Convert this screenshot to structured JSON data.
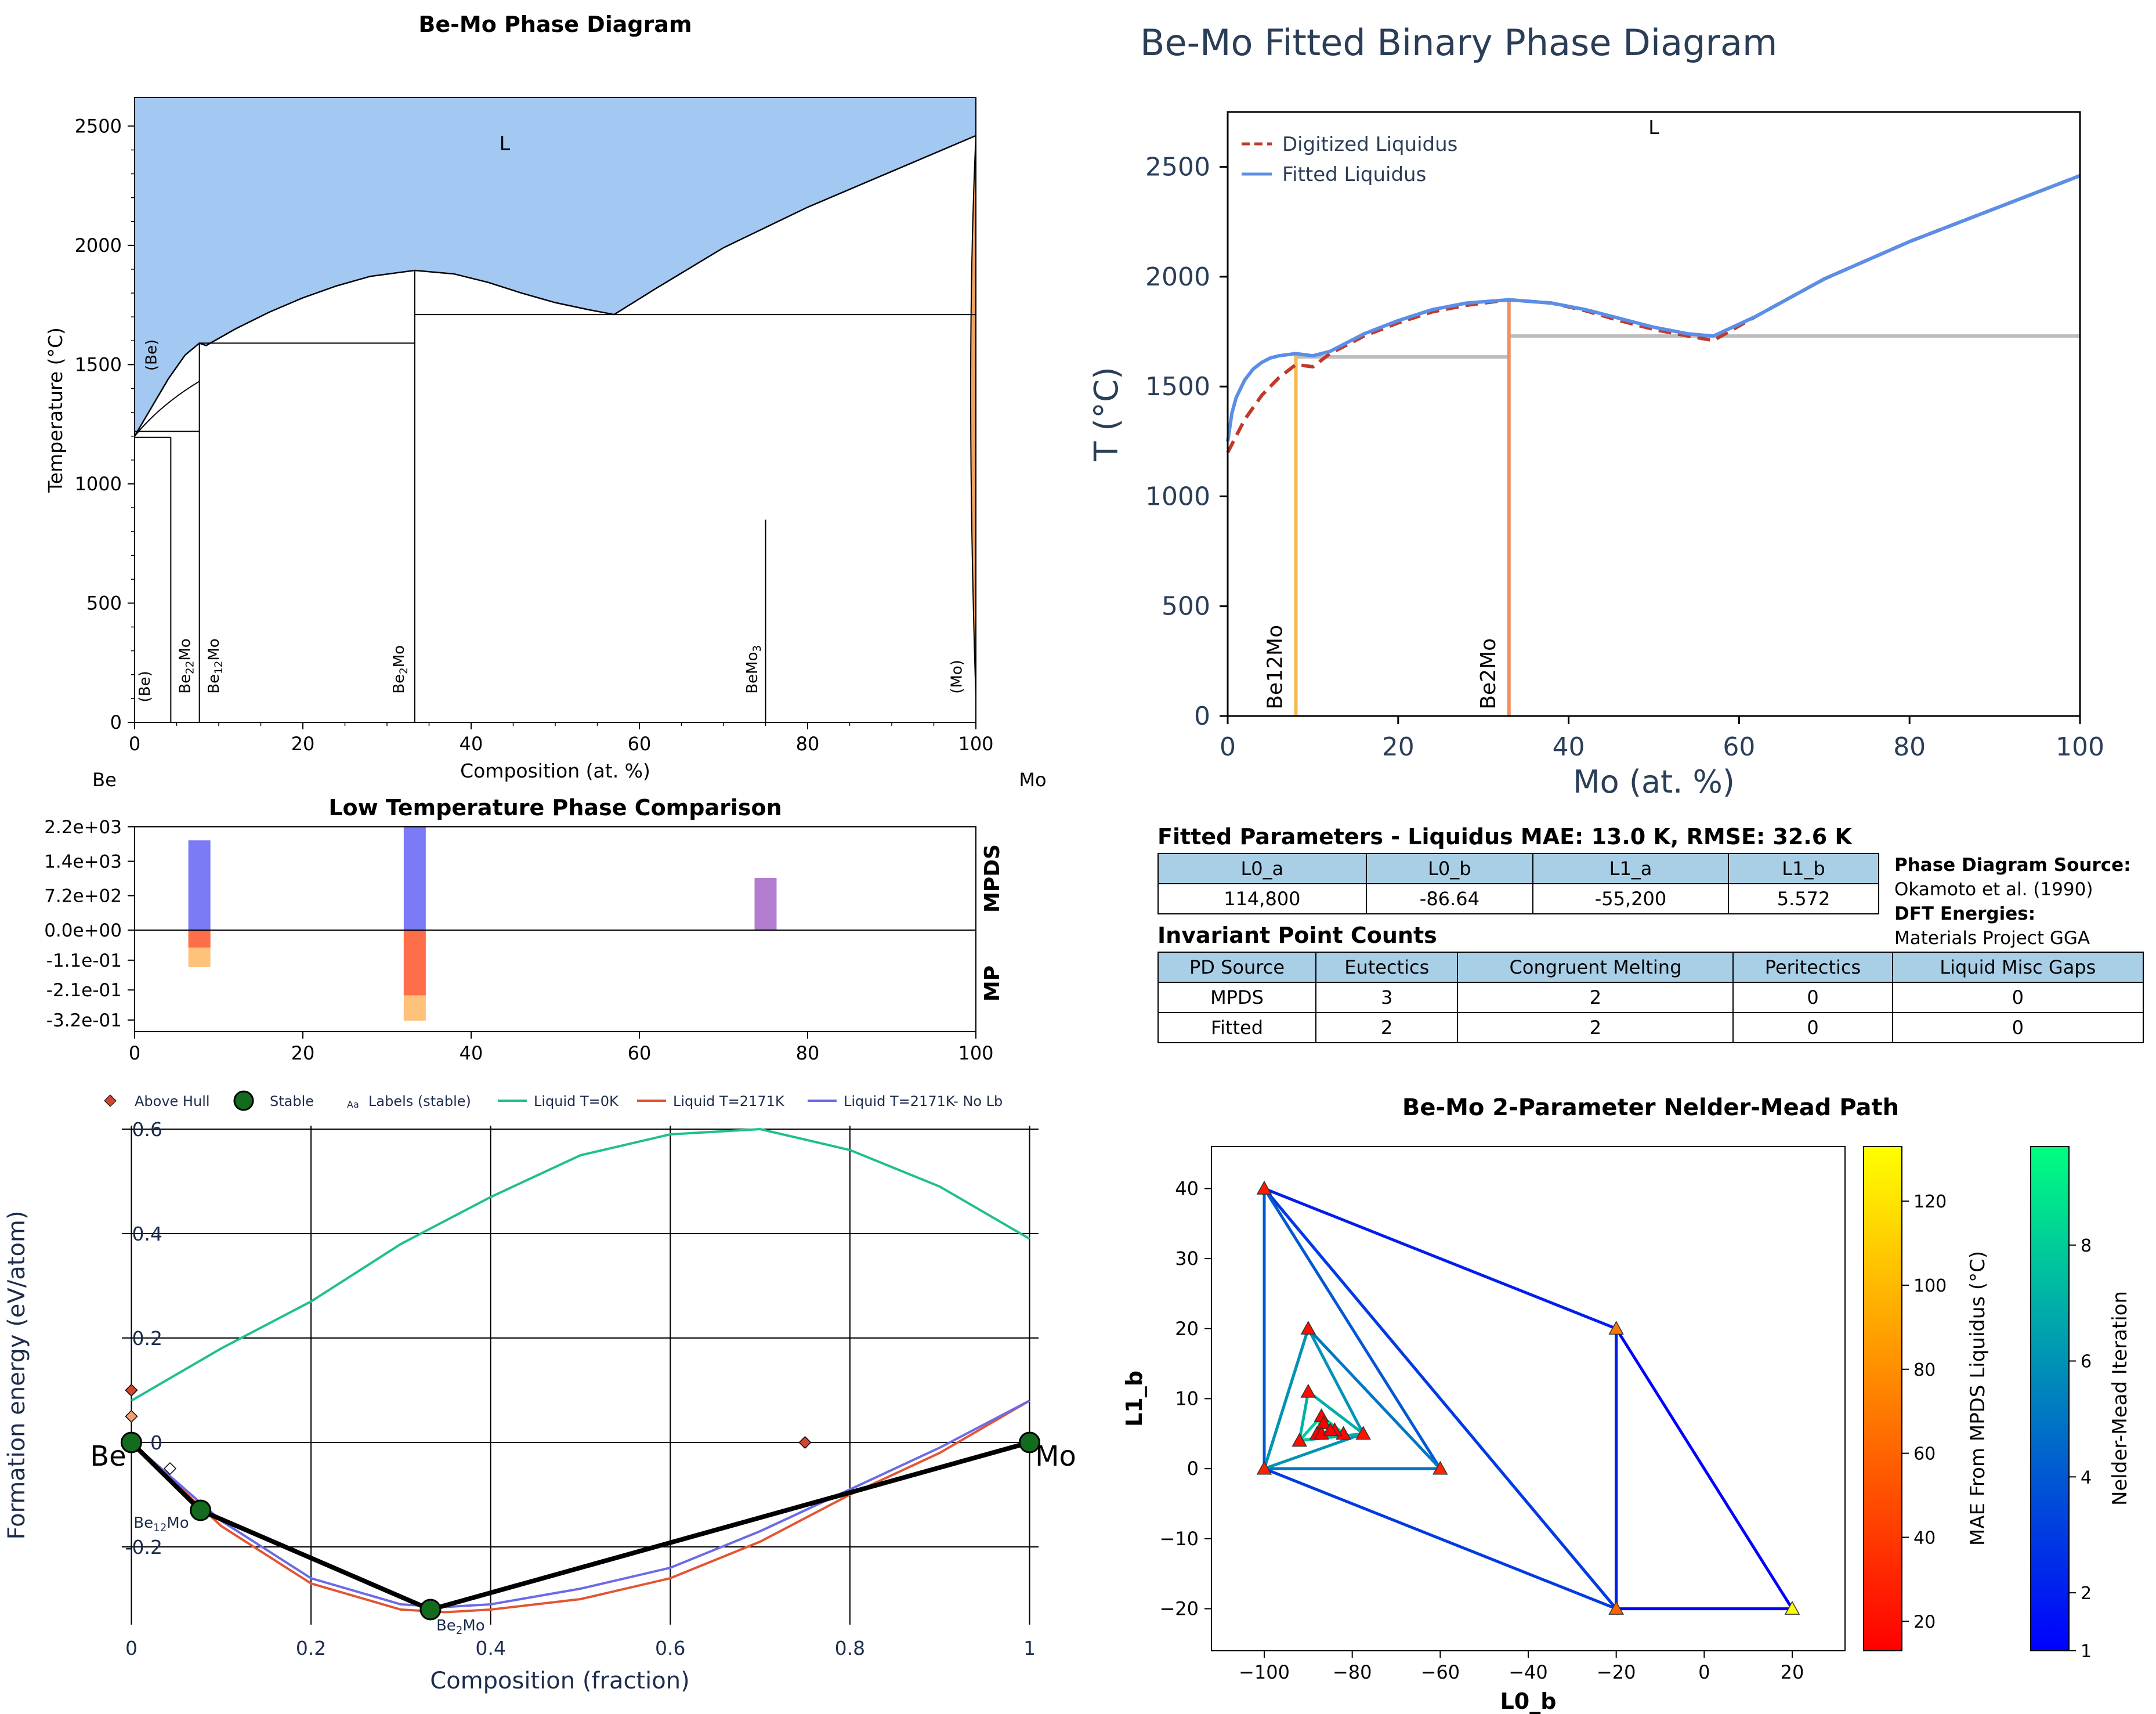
{
  "chart_data": [
    {
      "id": "phase_diagram",
      "type": "area",
      "title": "Be-Mo Phase Diagram",
      "xlabel": "Composition (at. %)",
      "ylabel": "Temperature (°C)",
      "xlim": [
        0,
        100
      ],
      "ylim": [
        0,
        2620
      ],
      "xticks": [
        "0",
        "20",
        "40",
        "60",
        "80",
        "100"
      ],
      "yticks": [
        "0",
        "500",
        "1000",
        "1500",
        "2000",
        "2500"
      ],
      "end_labels": [
        "Be",
        "Mo"
      ],
      "region_labels": [
        "L",
        "(Be)",
        "(Be)",
        "Be22Mo",
        "Be12Mo",
        "Be2Mo",
        "BeMo3",
        "(Mo)"
      ],
      "liquidus": {
        "x": [
          0,
          2,
          4,
          6,
          7.7,
          8.5,
          12,
          16,
          20,
          24,
          28,
          33.3,
          38,
          42,
          46,
          50,
          54,
          57,
          62,
          70,
          80,
          90,
          100
        ],
        "y": [
          1200,
          1320,
          1440,
          1540,
          1590,
          1580,
          1650,
          1720,
          1780,
          1830,
          1870,
          1895,
          1880,
          1845,
          1800,
          1760,
          1730,
          1710,
          1820,
          1990,
          2160,
          2310,
          2460
        ]
      },
      "invariant_lines": [
        {
          "T": 1220,
          "x_range": [
            0,
            7.7
          ]
        },
        {
          "T": 1195,
          "x_range": [
            0,
            4.3
          ]
        },
        {
          "T": 1590,
          "x_range": [
            7.7,
            33.3
          ]
        },
        {
          "T": 1710,
          "x_range": [
            33.3,
            100
          ]
        }
      ],
      "compounds": [
        {
          "x": 4.3,
          "T_top": 1195
        },
        {
          "x": 7.7,
          "T_top": 1590
        },
        {
          "x": 33.3,
          "T_top": 1895
        },
        {
          "x": 75,
          "T_top": 850
        }
      ],
      "colors": {
        "liquid": "#a3c8f2",
        "mo_solid": "#f2a462"
      }
    },
    {
      "id": "fitted_phase_diagram",
      "type": "line",
      "title": "Be-Mo Fitted Binary Phase Diagram",
      "xlabel": "Mo (at. %)",
      "ylabel": "T (°C)",
      "xlim": [
        0,
        100
      ],
      "ylim": [
        0,
        2750
      ],
      "xticks": [
        "0",
        "20",
        "40",
        "60",
        "80",
        "100"
      ],
      "yticks": [
        "0",
        "500",
        "1000",
        "1500",
        "2000",
        "2500"
      ],
      "region_label": "L",
      "legend": "top-left",
      "series": [
        {
          "name": "Digitized Liquidus",
          "color": "#c0392b",
          "style": "dashed",
          "x": [
            0,
            2,
            4,
            6,
            8,
            10,
            12,
            16,
            20,
            24,
            28,
            33,
            38,
            42,
            46,
            50,
            54,
            57,
            62,
            70,
            80,
            90,
            100
          ],
          "y": [
            1200,
            1350,
            1460,
            1540,
            1600,
            1590,
            1650,
            1730,
            1790,
            1840,
            1870,
            1895,
            1880,
            1845,
            1800,
            1760,
            1730,
            1710,
            1820,
            1990,
            2160,
            2310,
            2460
          ]
        },
        {
          "name": "Fitted Liquidus",
          "color": "#5b8ee6",
          "style": "solid",
          "x": [
            0,
            0.5,
            1,
            2,
            3,
            4,
            5,
            6,
            8,
            10,
            12,
            16,
            20,
            24,
            28,
            33,
            38,
            42,
            46,
            50,
            54,
            57,
            62,
            70,
            80,
            90,
            100
          ],
          "y": [
            1250,
            1380,
            1450,
            1530,
            1580,
            1610,
            1630,
            1640,
            1650,
            1640,
            1660,
            1740,
            1800,
            1850,
            1880,
            1895,
            1880,
            1850,
            1810,
            1770,
            1740,
            1730,
            1820,
            1990,
            2160,
            2310,
            2460
          ]
        }
      ],
      "compound_lines": [
        {
          "label": "Be12Mo",
          "x": 8,
          "T_top": 1650,
          "color": "#f5b94f"
        },
        {
          "label": "Be2Mo",
          "x": 33,
          "T_top": 1895,
          "color": "#ee8f66"
        }
      ],
      "invariant_lines": [
        {
          "T": 1635,
          "x_range": [
            8,
            33
          ]
        },
        {
          "T": 1730,
          "x_range": [
            33,
            100
          ]
        }
      ]
    },
    {
      "id": "low_temp_comparison",
      "type": "bar",
      "title": "Low Temperature Phase Comparison",
      "xlim": [
        0,
        100
      ],
      "xticks": [
        "0",
        "20",
        "40",
        "60",
        "80",
        "100"
      ],
      "yticks": [
        "2.2e+03",
        "1.4e+03",
        "7.2e+02",
        "0.0e+00",
        "-1.1e-01",
        "-2.1e-01",
        "-3.2e-01"
      ],
      "section_labels": [
        "MPDS",
        "MP"
      ],
      "mpds_ylim": [
        0,
        2200
      ],
      "mp_ylim": [
        -0.32,
        0
      ],
      "mpds_bars": [
        {
          "x": 7.7,
          "value": 1900,
          "color": "#7b7bf6"
        },
        {
          "x": 33.3,
          "value": 2200,
          "color": "#7b7bf6"
        },
        {
          "x": 75,
          "value": 1100,
          "color": "#b27dd0"
        }
      ],
      "mp_bars": [
        {
          "x": 7.7,
          "values": [
            -0.06,
            -0.13
          ],
          "colors": [
            "#ff6e4a",
            "#ffc27a"
          ]
        },
        {
          "x": 33.3,
          "values": [
            -0.23,
            -0.32
          ],
          "colors": [
            "#ff6e4a",
            "#ffc27a"
          ]
        }
      ]
    },
    {
      "id": "formation_energy",
      "type": "scatter",
      "xlabel": "Composition (fraction)",
      "ylabel": "Formation energy (eV/atom)",
      "xlim": [
        -0.03,
        1.01
      ],
      "ylim": [
        -0.36,
        0.64
      ],
      "xticks": [
        "0",
        "0.2",
        "0.4",
        "0.6",
        "0.8",
        "1"
      ],
      "yticks": [
        "-0.2",
        "0",
        "0.2",
        "0.4",
        "0.6"
      ],
      "legend_labels": [
        "Above Hull",
        "Stable",
        "Labels (stable)",
        "Liquid T=0K",
        "Liquid T=2171K",
        "Liquid T=2171K- No Lb"
      ],
      "legend_icon_text": "Aa",
      "end_labels": [
        "Be",
        "Mo"
      ],
      "stable": [
        {
          "x": 0,
          "y": 0
        },
        {
          "x": 0.077,
          "y": -0.13
        },
        {
          "x": 0.333,
          "y": -0.32
        },
        {
          "x": 1,
          "y": 0
        }
      ],
      "stable_labels": [
        "Be12Mo",
        "Be2Mo"
      ],
      "above_hull": [
        {
          "x": 0,
          "y": 0.1,
          "color": "#d2462f"
        },
        {
          "x": 0,
          "y": 0.05,
          "color": "#f2a070"
        },
        {
          "x": 0.043,
          "y": -0.05,
          "color": "#ffffff"
        },
        {
          "x": 0.75,
          "y": 0,
          "color": "#d2462f"
        }
      ],
      "liquid_series": [
        {
          "name": "Liquid T=0K",
          "color": "#1fbf8f",
          "x": [
            0,
            0.1,
            0.2,
            0.3,
            0.4,
            0.5,
            0.6,
            0.7,
            0.8,
            0.9,
            1.0
          ],
          "y": [
            0.08,
            0.18,
            0.27,
            0.38,
            0.47,
            0.55,
            0.59,
            0.6,
            0.56,
            0.49,
            0.39
          ]
        },
        {
          "name": "Liquid T=2171K",
          "color": "#e25533",
          "x": [
            0,
            0.1,
            0.2,
            0.3,
            0.35,
            0.4,
            0.5,
            0.6,
            0.7,
            0.8,
            0.9,
            1.0
          ],
          "y": [
            0,
            -0.16,
            -0.27,
            -0.32,
            -0.325,
            -0.32,
            -0.3,
            -0.26,
            -0.19,
            -0.1,
            -0.02,
            0.08
          ]
        },
        {
          "name": "Liquid T=2171K- No Lb",
          "color": "#6a6ae8",
          "x": [
            0,
            0.1,
            0.2,
            0.3,
            0.35,
            0.4,
            0.5,
            0.6,
            0.7,
            0.8,
            0.9,
            1.0
          ],
          "y": [
            0,
            -0.15,
            -0.26,
            -0.31,
            -0.315,
            -0.31,
            -0.28,
            -0.24,
            -0.17,
            -0.09,
            -0.01,
            0.08
          ]
        }
      ]
    },
    {
      "id": "nelder_mead",
      "type": "scatter",
      "title": "Be-Mo 2-Parameter Nelder-Mead Path",
      "xlabel": "L0_b",
      "ylabel": "L1_b",
      "xlim": [
        -112,
        32
      ],
      "ylim": [
        -26,
        46
      ],
      "xticks": [
        "−100",
        "−80",
        "−60",
        "−40",
        "−20",
        "0",
        "20"
      ],
      "yticks": [
        "−20",
        "−10",
        "0",
        "10",
        "20",
        "30",
        "40"
      ],
      "colorbar_mae": {
        "label": "MAE From MPDS Liquidus (°C)",
        "ticks": [
          "20",
          "40",
          "60",
          "80",
          "100",
          "120"
        ],
        "range": [
          13,
          133
        ]
      },
      "colorbar_iter": {
        "label": "Nelder-Mead Iteration",
        "ticks": [
          "1",
          "2",
          "4",
          "6",
          "8"
        ],
        "range": [
          1,
          9.7
        ]
      },
      "triangles": [
        {
          "iter": 1,
          "pts": [
            [
              -20,
              20
            ],
            [
              -20,
              -20
            ],
            [
              20,
              -20
            ]
          ]
        },
        {
          "iter": 2,
          "pts": [
            [
              -100,
              40
            ],
            [
              -20,
              20
            ],
            [
              -20,
              -20
            ]
          ]
        },
        {
          "iter": 3,
          "pts": [
            [
              -100,
              40
            ],
            [
              -100,
              0
            ],
            [
              -20,
              -20
            ]
          ]
        },
        {
          "iter": 4,
          "pts": [
            [
              -100,
              40
            ],
            [
              -100,
              0
            ],
            [
              -60,
              0
            ]
          ]
        },
        {
          "iter": 5,
          "pts": [
            [
              -90,
              20
            ],
            [
              -100,
              0
            ],
            [
              -60,
              0
            ]
          ]
        },
        {
          "iter": 6,
          "pts": [
            [
              -90,
              20
            ],
            [
              -100,
              0
            ],
            [
              -77.5,
              5
            ]
          ]
        },
        {
          "iter": 7,
          "pts": [
            [
              -90,
              11
            ],
            [
              -92,
              4
            ],
            [
              -77.5,
              5
            ]
          ]
        },
        {
          "iter": 8,
          "pts": [
            [
              -87,
              7.5
            ],
            [
              -92,
              4
            ],
            [
              -82,
              5
            ]
          ]
        },
        {
          "iter": 9,
          "pts": [
            [
              -87,
              7.5
            ],
            [
              -88,
              5
            ],
            [
              -84,
              5.5
            ]
          ]
        },
        {
          "iter": 9.7,
          "pts": [
            [
              -86.5,
              6.5
            ],
            [
              -87,
              5
            ],
            [
              -85,
              5.5
            ]
          ]
        }
      ],
      "points": [
        {
          "x": 20,
          "y": -20,
          "mae": 133
        },
        {
          "x": -20,
          "y": 20,
          "mae": 70
        },
        {
          "x": -20,
          "y": -20,
          "mae": 60
        },
        {
          "x": -100,
          "y": 40,
          "mae": 25
        },
        {
          "x": -100,
          "y": 0,
          "mae": 28
        },
        {
          "x": -60,
          "y": 0,
          "mae": 30
        },
        {
          "x": -90,
          "y": 20,
          "mae": 20
        },
        {
          "x": -77.5,
          "y": 5,
          "mae": 22
        },
        {
          "x": -90,
          "y": 11,
          "mae": 18
        },
        {
          "x": -92,
          "y": 4,
          "mae": 19
        },
        {
          "x": -87,
          "y": 7.5,
          "mae": 15
        },
        {
          "x": -82,
          "y": 5,
          "mae": 16
        },
        {
          "x": -88,
          "y": 5,
          "mae": 14
        },
        {
          "x": -84,
          "y": 5.5,
          "mae": 14
        },
        {
          "x": -86.5,
          "y": 6.5,
          "mae": 13
        },
        {
          "x": -87,
          "y": 5,
          "mae": 13
        },
        {
          "x": -85,
          "y": 5.5,
          "mae": 13
        }
      ]
    }
  ],
  "tables": {
    "fitted_title": "Fitted Parameters - Liquidus MAE: 13.0 K, RMSE: 32.6 K",
    "fitted_headers": [
      "L0_a",
      "L0_b",
      "L1_a",
      "L1_b"
    ],
    "fitted_values": [
      "114,800",
      "-86.64",
      "-55,200",
      "5.572"
    ],
    "invariant_title": "Invariant Point Counts",
    "invariant_headers": [
      "PD Source",
      "Eutectics",
      "Congruent Melting",
      "Peritectics",
      "Liquid Misc Gaps"
    ],
    "invariant_rows": [
      [
        "MPDS",
        "3",
        "2",
        "0",
        "0"
      ],
      [
        "Fitted",
        "2",
        "2",
        "0",
        "0"
      ]
    ],
    "source_label": "Phase Diagram Source:",
    "source_value": "Okamoto et al. (1990)",
    "dft_label": "DFT Energies:",
    "dft_value": "Materials Project GGA"
  }
}
